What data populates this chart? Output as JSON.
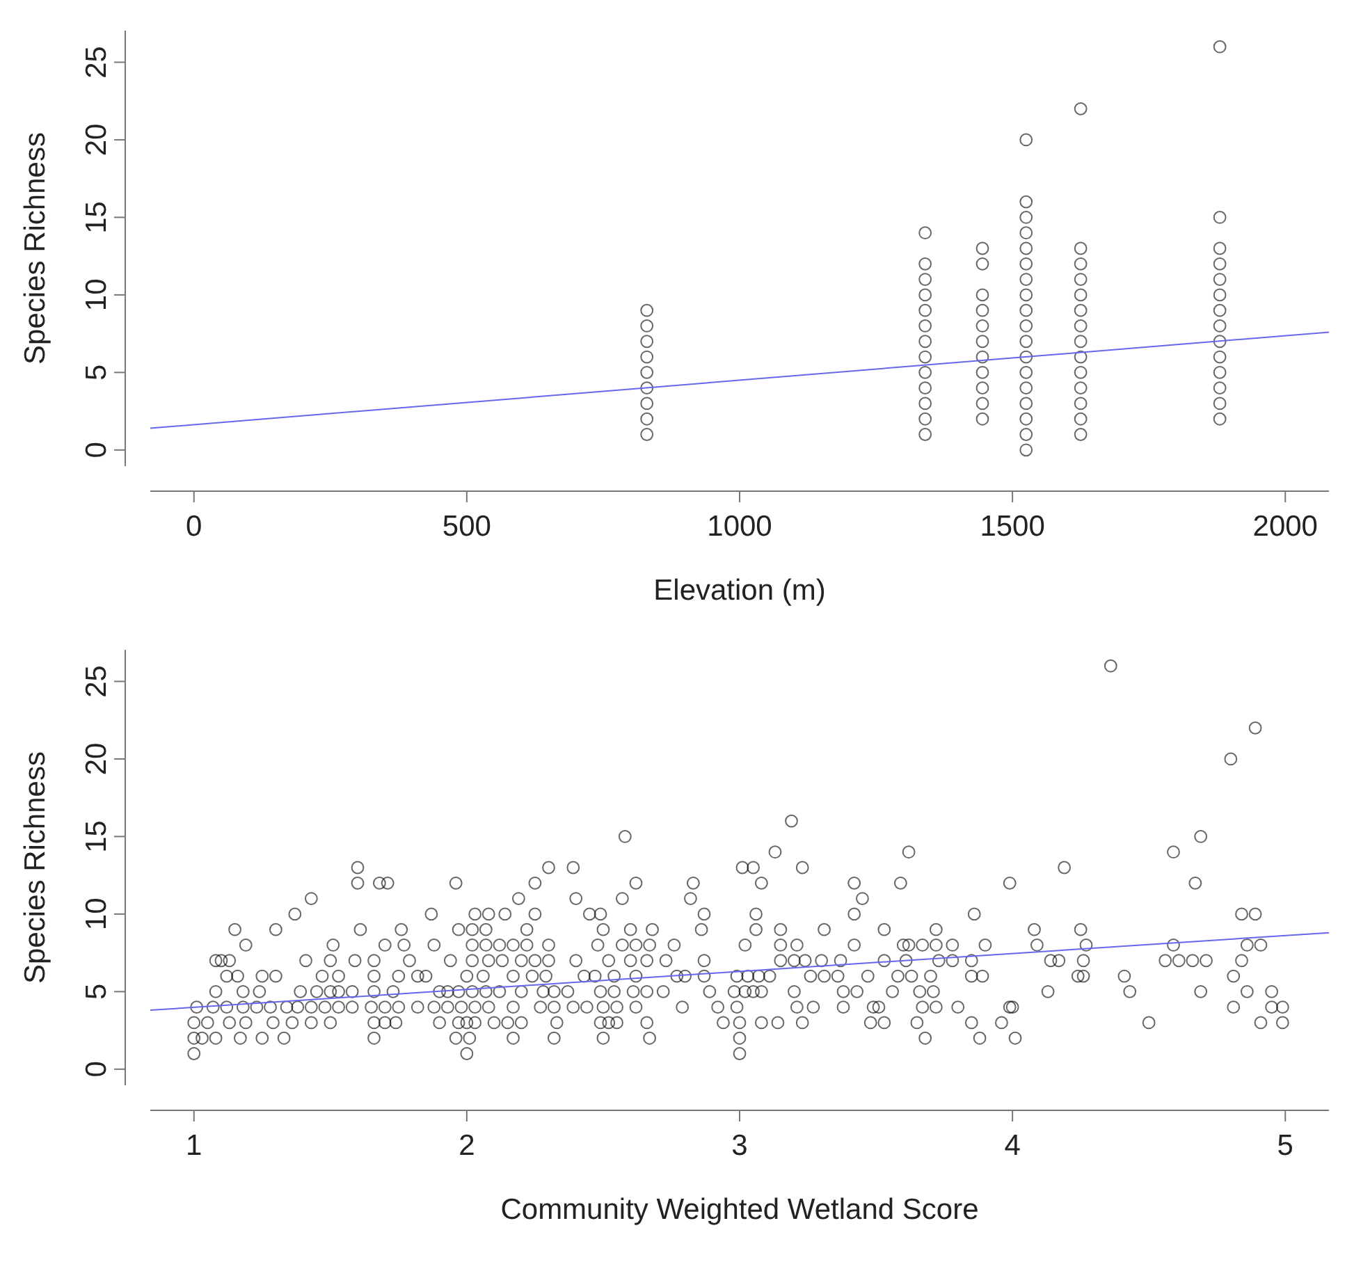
{
  "chart_data": [
    {
      "type": "scatter",
      "xlabel": "Elevation (m)",
      "ylabel": "Species Richness",
      "xlim": [
        -80,
        2080
      ],
      "ylim": [
        -1.04,
        27.04
      ],
      "xticks": [
        0,
        500,
        1000,
        1500,
        2000
      ],
      "yticks": [
        0,
        5,
        10,
        15,
        20,
        25
      ],
      "series": [
        {
          "marker": "circle",
          "color": "#000000",
          "x": [
            830,
            830,
            830,
            830,
            830,
            830,
            830,
            830,
            830,
            1340,
            1340,
            1340,
            1340,
            1340,
            1340,
            1340,
            1340,
            1340,
            1340,
            1340,
            1340,
            1340,
            1445,
            1445,
            1445,
            1445,
            1445,
            1445,
            1445,
            1445,
            1445,
            1445,
            1445,
            1525,
            1525,
            1525,
            1525,
            1525,
            1525,
            1525,
            1525,
            1525,
            1525,
            1525,
            1525,
            1525,
            1525,
            1525,
            1525,
            1525,
            1525,
            1625,
            1625,
            1625,
            1625,
            1625,
            1625,
            1625,
            1625,
            1625,
            1625,
            1625,
            1625,
            1625,
            1625,
            1880,
            1880,
            1880,
            1880,
            1880,
            1880,
            1880,
            1880,
            1880,
            1880,
            1880,
            1880,
            1880,
            1880
          ],
          "values": [
            1,
            2,
            3,
            4,
            5,
            6,
            7,
            8,
            9,
            1,
            2,
            3,
            4,
            5,
            6,
            7,
            8,
            9,
            10,
            11,
            12,
            14,
            2,
            3,
            4,
            5,
            6,
            7,
            8,
            9,
            10,
            12,
            13,
            0,
            1,
            2,
            3,
            4,
            5,
            6,
            7,
            8,
            9,
            10,
            11,
            12,
            13,
            14,
            15,
            16,
            20,
            1,
            2,
            3,
            4,
            5,
            6,
            7,
            8,
            9,
            10,
            11,
            12,
            13,
            22,
            2,
            3,
            4,
            5,
            6,
            7,
            8,
            9,
            10,
            11,
            12,
            13,
            15,
            26
          ]
        },
        {
          "type": "line",
          "color": "#6666ee",
          "x": [
            -80,
            2080
          ],
          "values": [
            1.4,
            7.6
          ]
        }
      ]
    },
    {
      "type": "scatter",
      "xlabel": "Community Weighted Wetland Score",
      "ylabel": "Species Richness",
      "xlim": [
        0.84,
        5.16
      ],
      "ylim": [
        -1.04,
        27.04
      ],
      "xticks": [
        1,
        2,
        3,
        4,
        5
      ],
      "yticks": [
        0,
        5,
        10,
        15,
        20,
        25
      ],
      "series": [
        {
          "marker": "circle",
          "color": "#000000",
          "x": [
            1.0,
            2.0,
            3.0,
            1.0,
            1.03,
            1.08,
            1.17,
            1.25,
            1.33,
            1.66,
            1.96,
            2.01,
            2.17,
            2.32,
            2.5,
            2.67,
            3.0,
            3.68,
            3.88,
            4.01,
            1.0,
            1.05,
            1.13,
            1.19,
            1.29,
            1.36,
            1.43,
            1.5,
            1.66,
            1.7,
            1.74,
            1.9,
            1.97,
            2.0,
            2.03,
            2.1,
            2.15,
            2.2,
            2.33,
            2.49,
            2.52,
            2.55,
            2.66,
            2.94,
            3.0,
            3.08,
            3.14,
            3.23,
            3.48,
            3.53,
            3.65,
            3.85,
            3.96,
            4.5,
            4.91,
            4.99,
            1.01,
            1.07,
            1.12,
            1.18,
            1.23,
            1.28,
            1.34,
            1.38,
            1.43,
            1.48,
            1.53,
            1.58,
            1.65,
            1.7,
            1.75,
            1.82,
            1.88,
            1.93,
            1.98,
            2.03,
            2.08,
            2.17,
            2.27,
            2.32,
            2.39,
            2.44,
            2.5,
            2.55,
            2.62,
            2.79,
            2.92,
            2.99,
            3.21,
            3.27,
            3.38,
            3.49,
            3.51,
            3.67,
            3.72,
            3.8,
            3.99,
            4.0,
            4.81,
            4.95,
            4.99,
            1.08,
            1.18,
            1.24,
            1.39,
            1.45,
            1.5,
            1.53,
            1.58,
            1.66,
            1.73,
            1.9,
            1.93,
            1.97,
            2.02,
            2.07,
            2.12,
            2.2,
            2.28,
            2.32,
            2.37,
            2.49,
            2.54,
            2.61,
            2.66,
            2.72,
            2.89,
            2.98,
            3.02,
            3.05,
            3.08,
            3.2,
            3.38,
            3.43,
            3.56,
            3.66,
            3.71,
            4.13,
            4.43,
            4.69,
            4.86,
            4.95,
            1.12,
            1.16,
            1.25,
            1.3,
            1.47,
            1.53,
            1.66,
            1.75,
            1.82,
            1.85,
            2.0,
            2.06,
            2.17,
            2.24,
            2.29,
            2.43,
            2.47,
            2.54,
            2.62,
            2.77,
            2.8,
            2.87,
            2.99,
            3.03,
            3.07,
            3.11,
            3.26,
            3.31,
            3.36,
            3.47,
            3.58,
            3.63,
            3.7,
            3.85,
            3.89,
            4.24,
            4.26,
            4.41,
            4.81,
            1.08,
            1.1,
            1.13,
            1.41,
            1.5,
            1.59,
            1.66,
            1.79,
            1.94,
            2.02,
            2.08,
            2.13,
            2.2,
            2.25,
            2.3,
            2.4,
            2.52,
            2.6,
            2.66,
            2.73,
            2.87,
            3.15,
            3.2,
            3.24,
            3.3,
            3.37,
            3.53,
            3.61,
            3.73,
            3.78,
            3.85,
            4.14,
            4.17,
            4.26,
            4.56,
            4.61,
            4.66,
            4.71,
            4.84,
            1.19,
            1.51,
            1.7,
            1.77,
            1.88,
            2.02,
            2.07,
            2.12,
            2.17,
            2.22,
            2.3,
            2.48,
            2.57,
            2.62,
            2.67,
            2.76,
            3.02,
            3.15,
            3.21,
            3.42,
            3.6,
            3.62,
            3.67,
            3.72,
            3.78,
            3.9,
            4.09,
            4.27,
            4.59,
            4.86,
            4.91,
            1.15,
            1.3,
            1.61,
            1.76,
            1.97,
            2.02,
            2.07,
            2.22,
            2.5,
            2.6,
            2.68,
            2.86,
            3.06,
            3.15,
            3.31,
            3.53,
            3.72,
            4.08,
            4.25,
            1.37,
            1.87,
            2.03,
            2.08,
            2.14,
            2.25,
            2.45,
            2.49,
            2.87,
            3.06,
            3.42,
            3.86,
            4.84,
            4.89,
            1.43,
            2.19,
            2.4,
            2.57,
            2.82,
            3.45,
            1.6,
            1.68,
            1.71,
            1.96,
            2.25,
            2.62,
            2.83,
            3.08,
            3.42,
            3.59,
            3.99,
            4.67,
            1.6,
            2.3,
            2.39,
            3.01,
            3.05,
            3.23,
            4.19,
            3.13,
            3.62,
            4.59,
            2.58,
            4.69,
            3.19,
            4.8,
            4.89,
            4.36
          ],
          "values": [
            1,
            1,
            1,
            2,
            2,
            2,
            2,
            2,
            2,
            2,
            2,
            2,
            2,
            2,
            2,
            2,
            2,
            2,
            2,
            2,
            3,
            3,
            3,
            3,
            3,
            3,
            3,
            3,
            3,
            3,
            3,
            3,
            3,
            3,
            3,
            3,
            3,
            3,
            3,
            3,
            3,
            3,
            3,
            3,
            3,
            3,
            3,
            3,
            3,
            3,
            3,
            3,
            3,
            3,
            3,
            3,
            4,
            4,
            4,
            4,
            4,
            4,
            4,
            4,
            4,
            4,
            4,
            4,
            4,
            4,
            4,
            4,
            4,
            4,
            4,
            4,
            4,
            4,
            4,
            4,
            4,
            4,
            4,
            4,
            4,
            4,
            4,
            4,
            4,
            4,
            4,
            4,
            4,
            4,
            4,
            4,
            4,
            4,
            4,
            4,
            4,
            5,
            5,
            5,
            5,
            5,
            5,
            5,
            5,
            5,
            5,
            5,
            5,
            5,
            5,
            5,
            5,
            5,
            5,
            5,
            5,
            5,
            5,
            5,
            5,
            5,
            5,
            5,
            5,
            5,
            5,
            5,
            5,
            5,
            5,
            5,
            5,
            5,
            5,
            5,
            5,
            5,
            6,
            6,
            6,
            6,
            6,
            6,
            6,
            6,
            6,
            6,
            6,
            6,
            6,
            6,
            6,
            6,
            6,
            6,
            6,
            6,
            6,
            6,
            6,
            6,
            6,
            6,
            6,
            6,
            6,
            6,
            6,
            6,
            6,
            6,
            6,
            6,
            6,
            6,
            6,
            7,
            7,
            7,
            7,
            7,
            7,
            7,
            7,
            7,
            7,
            7,
            7,
            7,
            7,
            7,
            7,
            7,
            7,
            7,
            7,
            7,
            7,
            7,
            7,
            7,
            7,
            7,
            7,
            7,
            7,
            7,
            7,
            7,
            7,
            7,
            7,
            7,
            7,
            7,
            8,
            8,
            8,
            8,
            8,
            8,
            8,
            8,
            8,
            8,
            8,
            8,
            8,
            8,
            8,
            8,
            8,
            8,
            8,
            8,
            8,
            8,
            8,
            8,
            8,
            8,
            8,
            8,
            8,
            8,
            8,
            9,
            9,
            9,
            9,
            9,
            9,
            9,
            9,
            9,
            9,
            9,
            9,
            9,
            9,
            9,
            9,
            9,
            9,
            9,
            10,
            10,
            10,
            10,
            10,
            10,
            10,
            10,
            10,
            10,
            10,
            10,
            10,
            10,
            11,
            11,
            11,
            11,
            11,
            11,
            12,
            12,
            12,
            12,
            12,
            12,
            12,
            12,
            12,
            12,
            12,
            12,
            13,
            13,
            13,
            13,
            13,
            13,
            13,
            14,
            14,
            14,
            15,
            15,
            16,
            20,
            22,
            26
          ]
        },
        {
          "type": "line",
          "color": "#6666ee",
          "x": [
            0.84,
            5.16
          ],
          "values": [
            3.8,
            8.8
          ]
        }
      ]
    }
  ]
}
